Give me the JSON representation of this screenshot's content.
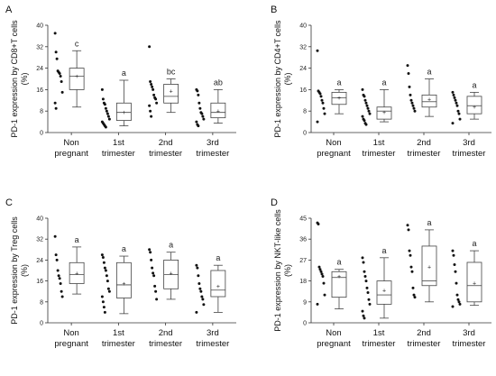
{
  "chart_data": [
    {
      "type": "box",
      "panel_label": "A",
      "ylabel_lines": [
        "PD-1 expression by CD8+T cells",
        "(%)"
      ],
      "ylim": [
        0,
        40
      ],
      "yticks": [
        0,
        8,
        16,
        24,
        32,
        40
      ],
      "categories": [
        [
          "Non",
          "pregnant"
        ],
        [
          "1st",
          "trimester"
        ],
        [
          "2nd",
          "trimester"
        ],
        [
          "3rd",
          "trimester"
        ]
      ],
      "significance": [
        "c",
        "a",
        "bc",
        "ab"
      ],
      "boxes": [
        {
          "min": 9.5,
          "q1": 16,
          "median": 21,
          "q3": 24,
          "max": 30.5,
          "mean": 21
        },
        {
          "min": 2.5,
          "q1": 4.5,
          "median": 7.5,
          "q3": 11,
          "max": 19.5,
          "mean": 7.5
        },
        {
          "min": 7.5,
          "q1": 11,
          "median": 13.5,
          "q3": 18,
          "max": 20,
          "mean": 15.5
        },
        {
          "min": 3.5,
          "q1": 5.5,
          "median": 7.5,
          "q3": 11,
          "max": 16,
          "mean": 8
        }
      ],
      "points": [
        [
          37,
          30,
          27.5,
          23,
          22.5,
          22,
          21,
          19,
          15,
          11,
          9
        ],
        [
          16,
          12.5,
          11,
          10.5,
          9,
          8,
          7,
          6,
          5,
          4,
          3.5,
          3,
          2.5,
          2
        ],
        [
          32,
          19,
          18,
          17,
          16,
          14,
          13,
          12.5,
          11,
          10,
          8,
          6
        ],
        [
          16,
          15.5,
          14,
          11,
          9,
          7.5,
          7,
          6,
          5,
          4,
          3,
          2.5
        ]
      ]
    },
    {
      "type": "box",
      "panel_label": "B",
      "ylabel_lines": [
        "PD-1 expression by CD4+T cells",
        "(%)"
      ],
      "ylim": [
        0,
        40
      ],
      "yticks": [
        0,
        8,
        16,
        24,
        32,
        40
      ],
      "categories": [
        [
          "Non",
          "pregnant"
        ],
        [
          "1st",
          "trimester"
        ],
        [
          "2nd",
          "trimester"
        ],
        [
          "3rd",
          "trimester"
        ]
      ],
      "significance": [
        "a",
        "a",
        "a",
        "a"
      ],
      "boxes": [
        {
          "min": 7,
          "q1": 10.5,
          "median": 13,
          "q3": 15,
          "max": 16,
          "mean": 13
        },
        {
          "min": 4,
          "q1": 5,
          "median": 8,
          "q3": 9.5,
          "max": 16,
          "mean": 7.5
        },
        {
          "min": 6,
          "q1": 9.5,
          "median": 11.5,
          "q3": 14,
          "max": 20,
          "mean": 12.5
        },
        {
          "min": 5,
          "q1": 7,
          "median": 10,
          "q3": 13.5,
          "max": 15,
          "mean": 9.5
        }
      ],
      "points": [
        [
          30.5,
          15.5,
          15,
          14.5,
          13.5,
          12,
          11,
          9,
          7,
          4
        ],
        [
          16,
          14,
          13.5,
          12,
          11,
          10,
          9,
          8,
          7,
          6,
          5,
          4.5,
          3.5,
          3
        ],
        [
          25,
          22,
          17,
          14,
          12,
          11,
          10,
          9,
          8
        ],
        [
          15,
          14,
          13,
          12,
          11,
          10,
          8,
          7,
          5,
          3.5
        ]
      ]
    },
    {
      "type": "box",
      "panel_label": "C",
      "ylabel_lines": [
        "PD-1 expression by Treg cells",
        "(%)"
      ],
      "ylim": [
        0,
        40
      ],
      "yticks": [
        0,
        8,
        16,
        24,
        32,
        40
      ],
      "categories": [
        [
          "Non",
          "pregnant"
        ],
        [
          "1st",
          "trimester"
        ],
        [
          "2nd",
          "trimester"
        ],
        [
          "3rd",
          "trimester"
        ]
      ],
      "significance": [
        "a",
        "a",
        "a",
        "a"
      ],
      "boxes": [
        {
          "min": 11,
          "q1": 15,
          "median": 18.5,
          "q3": 23,
          "max": 29,
          "mean": 19
        },
        {
          "min": 3.5,
          "q1": 9.5,
          "median": 14.5,
          "q3": 23,
          "max": 25.5,
          "mean": 15
        },
        {
          "min": 9,
          "q1": 13,
          "median": 18.5,
          "q3": 24,
          "max": 27,
          "mean": 19
        },
        {
          "min": 4,
          "q1": 10,
          "median": 12.5,
          "q3": 20,
          "max": 22,
          "mean": 14
        }
      ],
      "points": [
        [
          33,
          26,
          24,
          20,
          18,
          17,
          15,
          12,
          10
        ],
        [
          26,
          25,
          23,
          21,
          20,
          18,
          16,
          13,
          12,
          10,
          8,
          6,
          4
        ],
        [
          28,
          27,
          24,
          21,
          19,
          18,
          14,
          12,
          9
        ],
        [
          22,
          21,
          18,
          15,
          13,
          12,
          10,
          9,
          7,
          4
        ]
      ]
    },
    {
      "type": "box",
      "panel_label": "D",
      "ylabel_lines": [
        "PD-1 expression by NKT-like cells",
        "(%)"
      ],
      "ylim": [
        0,
        45
      ],
      "yticks": [
        0,
        9,
        18,
        27,
        36,
        45
      ],
      "categories": [
        [
          "Non",
          "pregnant"
        ],
        [
          "1st",
          "trimester"
        ],
        [
          "2nd",
          "trimester"
        ],
        [
          "3rd",
          "trimester"
        ]
      ],
      "significance": [
        "a",
        "a",
        "a",
        "a"
      ],
      "boxes": [
        {
          "min": 6,
          "q1": 11,
          "median": 19.5,
          "q3": 22,
          "max": 23,
          "mean": 20
        },
        {
          "min": 2,
          "q1": 8,
          "median": 12,
          "q3": 18,
          "max": 28,
          "mean": 14
        },
        {
          "min": 9,
          "q1": 16,
          "median": 18,
          "q3": 33,
          "max": 40,
          "mean": 24
        },
        {
          "min": 7.5,
          "q1": 9,
          "median": 16,
          "q3": 26,
          "max": 31,
          "mean": 17
        }
      ],
      "points": [
        [
          43,
          42.5,
          24,
          23,
          22,
          21,
          20,
          17,
          12,
          8
        ],
        [
          28,
          26,
          22,
          20,
          18,
          15,
          13,
          10,
          8,
          5,
          3,
          2
        ],
        [
          42,
          40,
          31,
          29,
          24,
          22,
          15,
          12,
          11
        ],
        [
          31,
          29,
          25,
          22,
          17,
          12,
          10,
          9,
          8,
          7
        ]
      ]
    }
  ]
}
